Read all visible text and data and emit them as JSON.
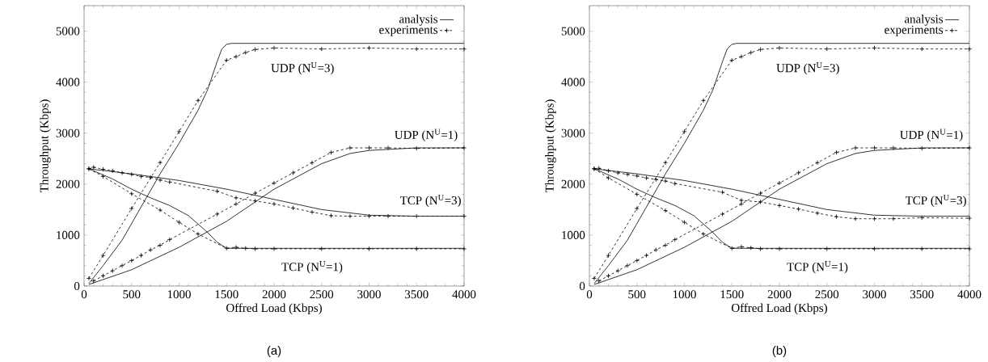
{
  "chart_data": [
    {
      "type": "line",
      "title": "(a)",
      "xlabel": "Offred Load (Kbps)",
      "ylabel": "Throughput (Kbps)",
      "xlim": [
        0,
        4000
      ],
      "ylim": [
        0,
        5500
      ],
      "xticks": [
        0,
        500,
        1000,
        1500,
        2000,
        2500,
        3000,
        3500,
        4000
      ],
      "yticks": [
        0,
        1000,
        2000,
        3000,
        4000,
        5000
      ],
      "legend": "top right",
      "annotations": [
        "UDP (N$^{U}$=3)",
        "UDP (N$^{U}$=1)",
        "TCP (N$^{U}$=3)",
        "TCP (N$^{U}$=1)"
      ],
      "series": [
        {
          "name": "analysis",
          "color": "#000000",
          "line_style": "solid",
          "marker": "none",
          "x": [
            50,
            200,
            400,
            600,
            800,
            1000,
            1200,
            1300,
            1400,
            1450,
            1500,
            1550,
            4000
          ],
          "values": [
            50,
            400,
            900,
            1550,
            2200,
            2800,
            3450,
            3850,
            4400,
            4650,
            4740,
            4760,
            4760
          ]
        },
        {
          "name": "experiments",
          "color": "#000000",
          "line_style": "dashed",
          "marker": "cross",
          "x": [
            50,
            200,
            500,
            800,
            1000,
            1200,
            1500,
            1600,
            1700,
            1800,
            2000,
            2500,
            3000,
            3500,
            4000
          ],
          "values": [
            150,
            600,
            1520,
            2420,
            3030,
            3640,
            4430,
            4500,
            4580,
            4640,
            4670,
            4650,
            4670,
            4650,
            4650
          ]
        },
        {
          "color": "#000000",
          "line_style": "solid",
          "marker": "none",
          "x": [
            50,
            500,
            1000,
            1500,
            2000,
            2500,
            2800,
            3000,
            3500,
            4000
          ],
          "values": [
            30,
            320,
            760,
            1270,
            1900,
            2400,
            2600,
            2660,
            2710,
            2710
          ]
        },
        {
          "color": "#000000",
          "line_style": "dashed",
          "marker": "cross",
          "x": [
            100,
            200,
            300,
            400,
            500,
            600,
            700,
            800,
            900,
            1400,
            1600,
            1800,
            2000,
            2200,
            2400,
            2600,
            2800,
            3000,
            3200,
            3500,
            4000
          ],
          "values": [
            100,
            200,
            300,
            400,
            500,
            600,
            710,
            800,
            910,
            1410,
            1610,
            1820,
            2020,
            2220,
            2420,
            2620,
            2710,
            2710,
            2710,
            2700,
            2710
          ]
        },
        {
          "color": "#000000",
          "line_style": "solid",
          "marker": "none",
          "x": [
            50,
            500,
            1000,
            1500,
            2000,
            2500,
            3000,
            3500,
            4000
          ],
          "values": [
            2300,
            2200,
            2070,
            1900,
            1700,
            1500,
            1390,
            1370,
            1370
          ]
        },
        {
          "color": "#000000",
          "line_style": "dashed",
          "marker": "cross",
          "x": [
            50,
            100,
            200,
            300,
            400,
            500,
            600,
            700,
            800,
            900,
            1400,
            1600,
            1800,
            2000,
            2200,
            2400,
            2600,
            2800,
            3000,
            3200,
            3500,
            4000
          ],
          "values": [
            2300,
            2330,
            2290,
            2260,
            2220,
            2190,
            2150,
            2130,
            2080,
            2040,
            1860,
            1730,
            1670,
            1610,
            1530,
            1450,
            1380,
            1370,
            1370,
            1370,
            1370,
            1370
          ]
        },
        {
          "color": "#000000",
          "line_style": "solid",
          "marker": "none",
          "x": [
            50,
            300,
            500,
            700,
            900,
            1100,
            1300,
            1400,
            1500,
            4000
          ],
          "values": [
            2300,
            2100,
            1900,
            1730,
            1580,
            1380,
            1050,
            860,
            740,
            740
          ]
        },
        {
          "color": "#000000",
          "line_style": "dashed",
          "marker": "cross",
          "x": [
            50,
            200,
            500,
            800,
            1000,
            1200,
            1500,
            1600,
            1700,
            1800,
            2000,
            2500,
            3000,
            3500,
            4000
          ],
          "values": [
            2300,
            2150,
            1810,
            1490,
            1250,
            1020,
            740,
            760,
            740,
            730,
            730,
            730,
            730,
            730,
            730
          ]
        }
      ]
    },
    {
      "type": "line",
      "title": "(b)",
      "xlabel": "Offred Load (Kbps)",
      "ylabel": "Throughput (Kbps)",
      "xlim": [
        0,
        4000
      ],
      "ylim": [
        0,
        5500
      ],
      "xticks": [
        0,
        500,
        1000,
        1500,
        2000,
        2500,
        3000,
        3500,
        4000
      ],
      "yticks": [
        0,
        1000,
        2000,
        3000,
        4000,
        5000
      ],
      "legend": "top right",
      "annotations": [
        "UDP (N$^{U}$=3)",
        "UDP (N$^{U}$=1)",
        "TCP (N$^{U}$=3)",
        "TCP (N$^{U}$=1)"
      ],
      "series": [
        {
          "name": "analysis",
          "color": "#000000",
          "line_style": "solid",
          "marker": "none",
          "x": [
            50,
            200,
            400,
            600,
            800,
            1000,
            1200,
            1300,
            1400,
            1450,
            1500,
            1550,
            4000
          ],
          "values": [
            50,
            400,
            900,
            1550,
            2200,
            2800,
            3450,
            3850,
            4400,
            4650,
            4740,
            4760,
            4760
          ]
        },
        {
          "name": "experiments",
          "color": "#000000",
          "line_style": "dashed",
          "marker": "cross",
          "x": [
            50,
            200,
            500,
            800,
            1000,
            1200,
            1500,
            1600,
            1700,
            1800,
            2000,
            2500,
            3000,
            3500,
            4000
          ],
          "values": [
            150,
            600,
            1520,
            2420,
            3030,
            3640,
            4430,
            4500,
            4580,
            4640,
            4670,
            4650,
            4670,
            4650,
            4650
          ]
        },
        {
          "color": "#000000",
          "line_style": "solid",
          "marker": "none",
          "x": [
            50,
            500,
            1000,
            1500,
            2000,
            2500,
            2800,
            3000,
            3500,
            4000
          ],
          "values": [
            30,
            320,
            760,
            1270,
            1900,
            2400,
            2600,
            2660,
            2710,
            2710
          ]
        },
        {
          "color": "#000000",
          "line_style": "dashed",
          "marker": "cross",
          "x": [
            100,
            200,
            300,
            400,
            500,
            600,
            700,
            800,
            900,
            1400,
            1600,
            1800,
            2000,
            2200,
            2400,
            2600,
            2800,
            3000,
            3200,
            3500,
            4000
          ],
          "values": [
            100,
            200,
            300,
            400,
            500,
            600,
            710,
            800,
            910,
            1410,
            1610,
            1820,
            2020,
            2220,
            2420,
            2620,
            2710,
            2710,
            2710,
            2700,
            2710
          ]
        },
        {
          "color": "#000000",
          "line_style": "solid",
          "marker": "none",
          "x": [
            50,
            500,
            1000,
            1500,
            2000,
            2500,
            3000,
            3500,
            4000
          ],
          "values": [
            2300,
            2200,
            2070,
            1900,
            1700,
            1500,
            1390,
            1370,
            1370
          ]
        },
        {
          "color": "#000000",
          "line_style": "dashed",
          "marker": "cross",
          "x": [
            50,
            100,
            200,
            300,
            400,
            500,
            600,
            700,
            800,
            900,
            1400,
            1600,
            1800,
            2000,
            2200,
            2400,
            2600,
            2800,
            3000,
            3200,
            3500,
            4000
          ],
          "values": [
            2300,
            2310,
            2260,
            2220,
            2190,
            2160,
            2120,
            2090,
            2060,
            2010,
            1840,
            1680,
            1650,
            1580,
            1510,
            1430,
            1360,
            1320,
            1320,
            1320,
            1340,
            1330
          ]
        },
        {
          "color": "#000000",
          "line_style": "solid",
          "marker": "none",
          "x": [
            50,
            300,
            500,
            700,
            900,
            1100,
            1300,
            1400,
            1500,
            4000
          ],
          "values": [
            2300,
            2100,
            1900,
            1730,
            1580,
            1380,
            1050,
            860,
            740,
            740
          ]
        },
        {
          "color": "#000000",
          "line_style": "dashed",
          "marker": "cross",
          "x": [
            50,
            200,
            500,
            800,
            1000,
            1200,
            1500,
            1600,
            1700,
            1800,
            2000,
            2500,
            3000,
            3500,
            4000
          ],
          "values": [
            2300,
            2120,
            1800,
            1480,
            1250,
            1020,
            740,
            770,
            750,
            730,
            730,
            730,
            730,
            730,
            730
          ]
        }
      ]
    }
  ]
}
